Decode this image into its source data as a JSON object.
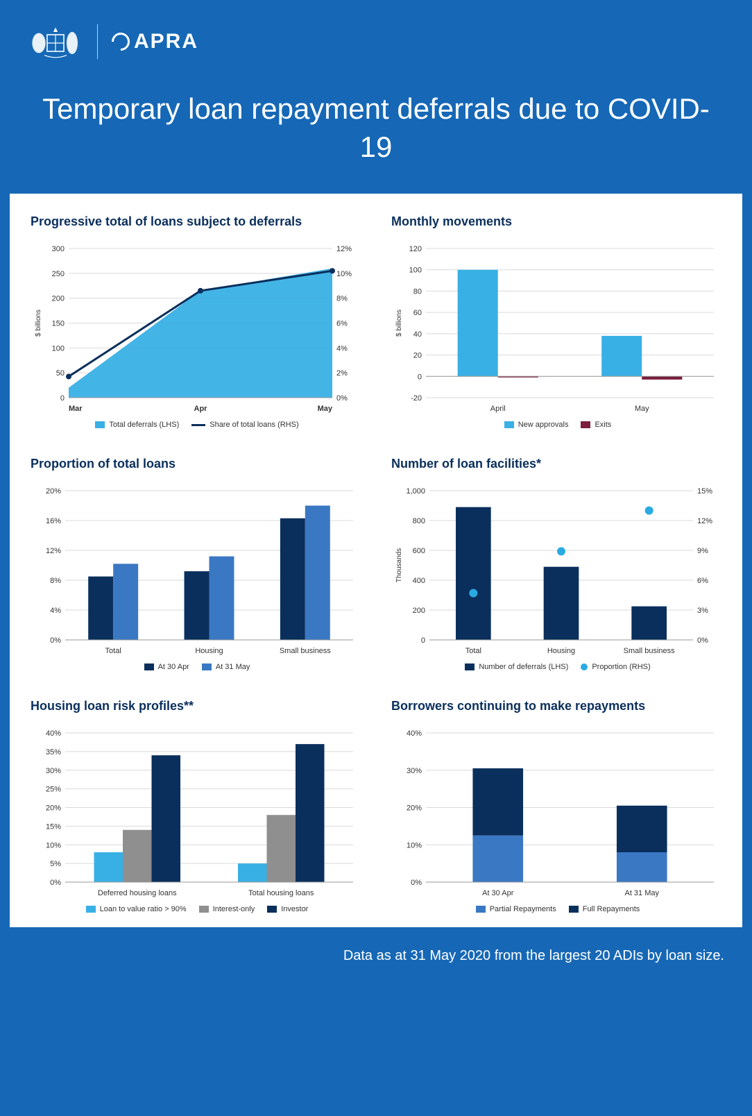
{
  "header": {
    "brand": "APRA"
  },
  "title": "Temporary loan repayment deferrals due to COVID-19",
  "footer": "Data as at 31 May 2020 from the largest 20 ADIs by loan size.",
  "colors": {
    "page_bg": "#1668b6",
    "panel_bg": "#ffffff",
    "title_text": "#0a2f5c",
    "grid": "#d9d9d9",
    "light_blue": "#39b0e5",
    "dark_navy": "#0a2f5c",
    "mid_blue": "#3a78c3",
    "grey": "#8f8f8f",
    "maroon": "#7a1f3d",
    "cyan": "#29abe2"
  },
  "chart1": {
    "title": "Progressive total of loans subject to deferrals",
    "type": "area_line_dual_axis",
    "y1_label": "$ billions",
    "x_categories": [
      "Mar",
      "Apr",
      "May"
    ],
    "y1_ticks": [
      0,
      50,
      100,
      150,
      200,
      250,
      300
    ],
    "y2_ticks_labels": [
      "0%",
      "2%",
      "4%",
      "6%",
      "8%",
      "10%",
      "12%"
    ],
    "y1_lim": [
      0,
      300
    ],
    "y2_lim": [
      0,
      12
    ],
    "area_series": {
      "label": "Total deferrals (LHS)",
      "color": "#39b0e5",
      "values": [
        20,
        215,
        260
      ]
    },
    "line_series": {
      "label": "Share of total loans (RHS)",
      "color": "#0a2f5c",
      "values": [
        1.7,
        8.6,
        10.2
      ]
    },
    "line_width": 3
  },
  "chart2": {
    "title": "Monthly movements",
    "type": "grouped_bar",
    "y_label": "$ billions",
    "x_categories": [
      "April",
      "May"
    ],
    "y_ticks": [
      -20,
      0,
      20,
      40,
      60,
      80,
      100,
      120
    ],
    "y_lim": [
      -20,
      120
    ],
    "series": [
      {
        "label": "New approvals",
        "color": "#39b0e5",
        "values": [
          100,
          38
        ]
      },
      {
        "label": "Exits",
        "color": "#7a1f3d",
        "values": [
          -1,
          -3
        ]
      }
    ],
    "bar_width": 0.28
  },
  "chart3": {
    "title": "Proportion of total loans",
    "type": "grouped_bar",
    "x_categories": [
      "Total",
      "Housing",
      "Small business"
    ],
    "y_ticks_labels": [
      "0%",
      "4%",
      "8%",
      "12%",
      "16%",
      "20%"
    ],
    "y_ticks": [
      0,
      4,
      8,
      12,
      16,
      20
    ],
    "y_lim": [
      0,
      20
    ],
    "series": [
      {
        "label": "At 30 Apr",
        "color": "#0a2f5c",
        "values": [
          8.5,
          9.2,
          16.3
        ]
      },
      {
        "label": "At 31 May",
        "color": "#3a78c3",
        "values": [
          10.2,
          11.2,
          18.0
        ]
      }
    ],
    "bar_width": 0.26
  },
  "chart4": {
    "title": "Number of loan facilities*",
    "type": "bar_dot_dual_axis",
    "y1_label": "Thousands",
    "x_categories": [
      "Total",
      "Housing",
      "Small business"
    ],
    "y1_ticks": [
      0,
      200,
      400,
      600,
      800,
      "1,000"
    ],
    "y1_ticks_num": [
      0,
      200,
      400,
      600,
      800,
      1000
    ],
    "y1_lim": [
      0,
      1000
    ],
    "y2_ticks_labels": [
      "0%",
      "3%",
      "6%",
      "9%",
      "12%",
      "15%"
    ],
    "y2_lim": [
      0,
      15
    ],
    "bar_series": {
      "label": "Number of deferrals (LHS)",
      "color": "#0a2f5c",
      "values": [
        890,
        490,
        225
      ]
    },
    "dot_series": {
      "label": "Proportion (RHS)",
      "color": "#29abe2",
      "values": [
        4.7,
        8.9,
        13.0
      ]
    },
    "bar_width": 0.4,
    "dot_radius": 6
  },
  "chart5": {
    "title": "Housing loan risk profiles**",
    "type": "grouped_bar",
    "x_categories": [
      "Deferred housing loans",
      "Total housing loans"
    ],
    "y_ticks_labels": [
      "0%",
      "5%",
      "10%",
      "15%",
      "20%",
      "25%",
      "30%",
      "35%",
      "40%"
    ],
    "y_ticks": [
      0,
      5,
      10,
      15,
      20,
      25,
      30,
      35,
      40
    ],
    "y_lim": [
      0,
      40
    ],
    "series": [
      {
        "label": "Loan to value ratio > 90%",
        "color": "#39b0e5",
        "values": [
          8,
          5
        ]
      },
      {
        "label": "Interest-only",
        "color": "#8f8f8f",
        "values": [
          14,
          18
        ]
      },
      {
        "label": "Investor",
        "color": "#0a2f5c",
        "values": [
          34,
          37
        ]
      }
    ],
    "bar_width": 0.2
  },
  "chart6": {
    "title": "Borrowers continuing to make repayments",
    "type": "stacked_bar",
    "x_categories": [
      "At 30 Apr",
      "At 31 May"
    ],
    "y_ticks_labels": [
      "0%",
      "10%",
      "20%",
      "30%",
      "40%"
    ],
    "y_ticks": [
      0,
      10,
      20,
      30,
      40
    ],
    "y_lim": [
      0,
      40
    ],
    "series": [
      {
        "label": "Partial Repayments",
        "color": "#3a78c3",
        "values": [
          12.5,
          8
        ]
      },
      {
        "label": "Full Repayments",
        "color": "#0a2f5c",
        "values": [
          18,
          12.5
        ]
      }
    ],
    "bar_width": 0.35
  }
}
